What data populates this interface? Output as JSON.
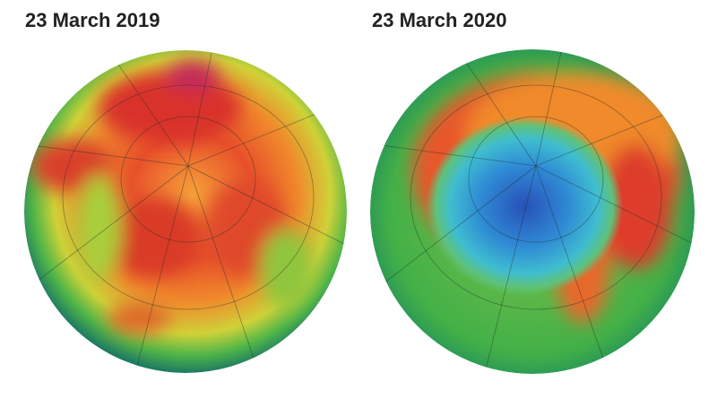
{
  "panels": [
    {
      "title": "23 March 2019"
    },
    {
      "title": "23 March 2020"
    }
  ]
}
